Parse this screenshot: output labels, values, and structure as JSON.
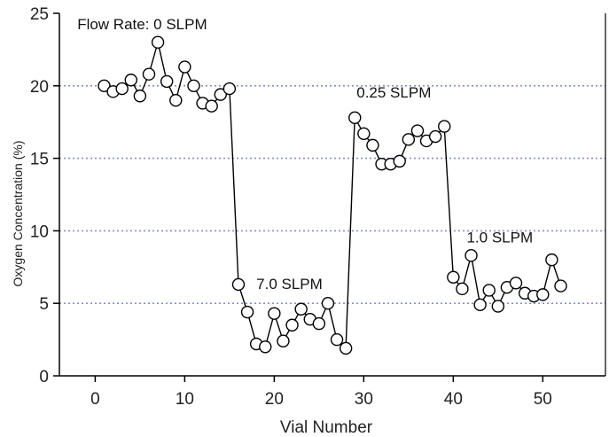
{
  "chart_data": {
    "type": "scatter",
    "title": "",
    "xlabel": "Vial Number",
    "ylabel": "Oxygen Concentration (%)",
    "xlim": [
      -4,
      57
    ],
    "ylim": [
      0,
      25
    ],
    "xticks": [
      0,
      10,
      20,
      30,
      40,
      50
    ],
    "yticks": [
      0,
      5,
      10,
      15,
      20,
      25
    ],
    "gridlines_y": [
      5,
      10,
      15,
      20
    ],
    "grid": "horizontal dotted",
    "connected": true,
    "marker": "open-circle",
    "colors": {
      "line": "#000000",
      "marker_fill": "#ffffff",
      "grid": "#8a8fc8"
    },
    "series": [
      {
        "x": [
          1,
          2,
          3,
          4,
          5,
          6,
          7,
          8,
          9,
          10,
          11,
          12,
          13,
          14,
          15,
          16,
          17,
          18,
          19,
          20,
          21,
          22,
          23,
          24,
          25,
          26,
          27,
          28,
          29,
          30,
          31,
          32,
          33,
          34,
          35,
          36,
          37,
          38,
          39,
          40,
          41,
          42,
          43,
          44,
          45,
          46,
          47,
          48,
          49,
          50,
          51,
          52
        ],
        "y": [
          20.0,
          19.6,
          19.8,
          20.4,
          19.3,
          20.8,
          23.0,
          20.3,
          19.0,
          21.3,
          20.0,
          18.8,
          18.6,
          19.4,
          19.8,
          6.3,
          4.4,
          2.2,
          2.0,
          4.3,
          2.4,
          3.5,
          4.6,
          3.9,
          3.6,
          5.0,
          2.5,
          1.9,
          17.8,
          16.7,
          15.9,
          14.6,
          14.6,
          14.8,
          16.3,
          16.9,
          16.2,
          16.5,
          17.2,
          6.8,
          6.0,
          8.3,
          4.9,
          5.9,
          4.8,
          6.1,
          6.4,
          5.7,
          5.5,
          5.6,
          8.0,
          6.2
        ]
      }
    ],
    "annotations": [
      {
        "text": "Flow Rate: 0 SLPM",
        "x": -2,
        "y": 23.9
      },
      {
        "text": "7.0 SLPM",
        "x": 18,
        "y": 6.0
      },
      {
        "text": "0.25 SLPM",
        "x": 29.2,
        "y": 19.2
      },
      {
        "text": "1.0 SLPM",
        "x": 41.5,
        "y": 9.2
      }
    ]
  }
}
